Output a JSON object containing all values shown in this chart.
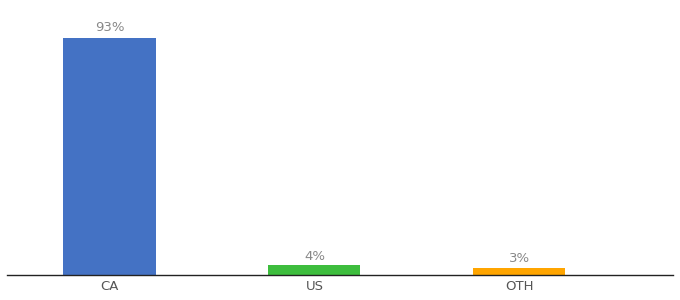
{
  "categories": [
    "CA",
    "US",
    "OTH"
  ],
  "values": [
    93,
    4,
    3
  ],
  "bar_colors": [
    "#4472C4",
    "#3DBD3D",
    "#FFA500"
  ],
  "labels": [
    "93%",
    "4%",
    "3%"
  ],
  "background_color": "#ffffff",
  "label_color": "#888888",
  "tick_color": "#555555",
  "bar_width": 0.9,
  "x_positions": [
    1,
    3,
    5
  ],
  "xlim": [
    0,
    6.5
  ],
  "ylim": [
    0,
    105
  ],
  "label_fontsize": 9.5,
  "tick_fontsize": 9.5
}
